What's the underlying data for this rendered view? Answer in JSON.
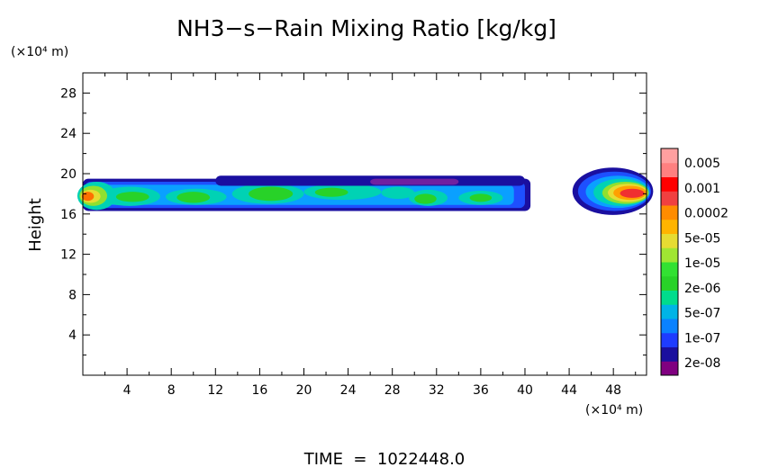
{
  "chart_data": {
    "type": "heatmap",
    "title": "NH3−s−Rain Mixing Ratio [kg/kg]",
    "ylabel": "Height",
    "yunit": "(×10⁴ m)",
    "xunit": "(×10⁴ m)",
    "xlim": [
      0,
      51
    ],
    "ylim": [
      0,
      30
    ],
    "xticks": [
      4,
      8,
      12,
      16,
      20,
      24,
      28,
      32,
      36,
      40,
      44,
      48
    ],
    "yticks": [
      4,
      8,
      12,
      16,
      20,
      24,
      28
    ],
    "xtick_labels": [
      "4",
      "8",
      "12",
      "16",
      "20",
      "24",
      "28",
      "32",
      "36",
      "40",
      "44",
      "48"
    ],
    "ytick_labels": [
      "4",
      "8",
      "12",
      "16",
      "20",
      "24",
      "28"
    ],
    "grid": false,
    "colorbar": {
      "placement": "right",
      "labels": [
        "0.005",
        "0.001",
        "0.0002",
        "5e-05",
        "1e-05",
        "2e-06",
        "5e-07",
        "1e-07",
        "2e-08"
      ],
      "colors": [
        "#800080",
        "#1a0f9e",
        "#1e3cff",
        "#0a82ff",
        "#00b4e6",
        "#00dc8c",
        "#28d228",
        "#32e132",
        "#a0e632",
        "#e6dc32",
        "#ffb400",
        "#ff8c00",
        "#f04040",
        "#ff0000",
        "#ff8080",
        "#ffa0a0"
      ]
    },
    "regions": [
      {
        "name": "main-layer",
        "x_range": [
          0,
          40.5
        ],
        "y_range": [
          16.2,
          19.8
        ],
        "level": "1e-05"
      },
      {
        "name": "left-edge-core",
        "x_range": [
          0,
          3
        ],
        "y_range": [
          16.5,
          19.2
        ],
        "level": "0.0002"
      },
      {
        "name": "right-cell",
        "x_range": [
          44.5,
          51
        ],
        "y_range": [
          16,
          20.5
        ],
        "level": "0.001"
      }
    ],
    "footer": "TIME  =  1022448.0"
  }
}
